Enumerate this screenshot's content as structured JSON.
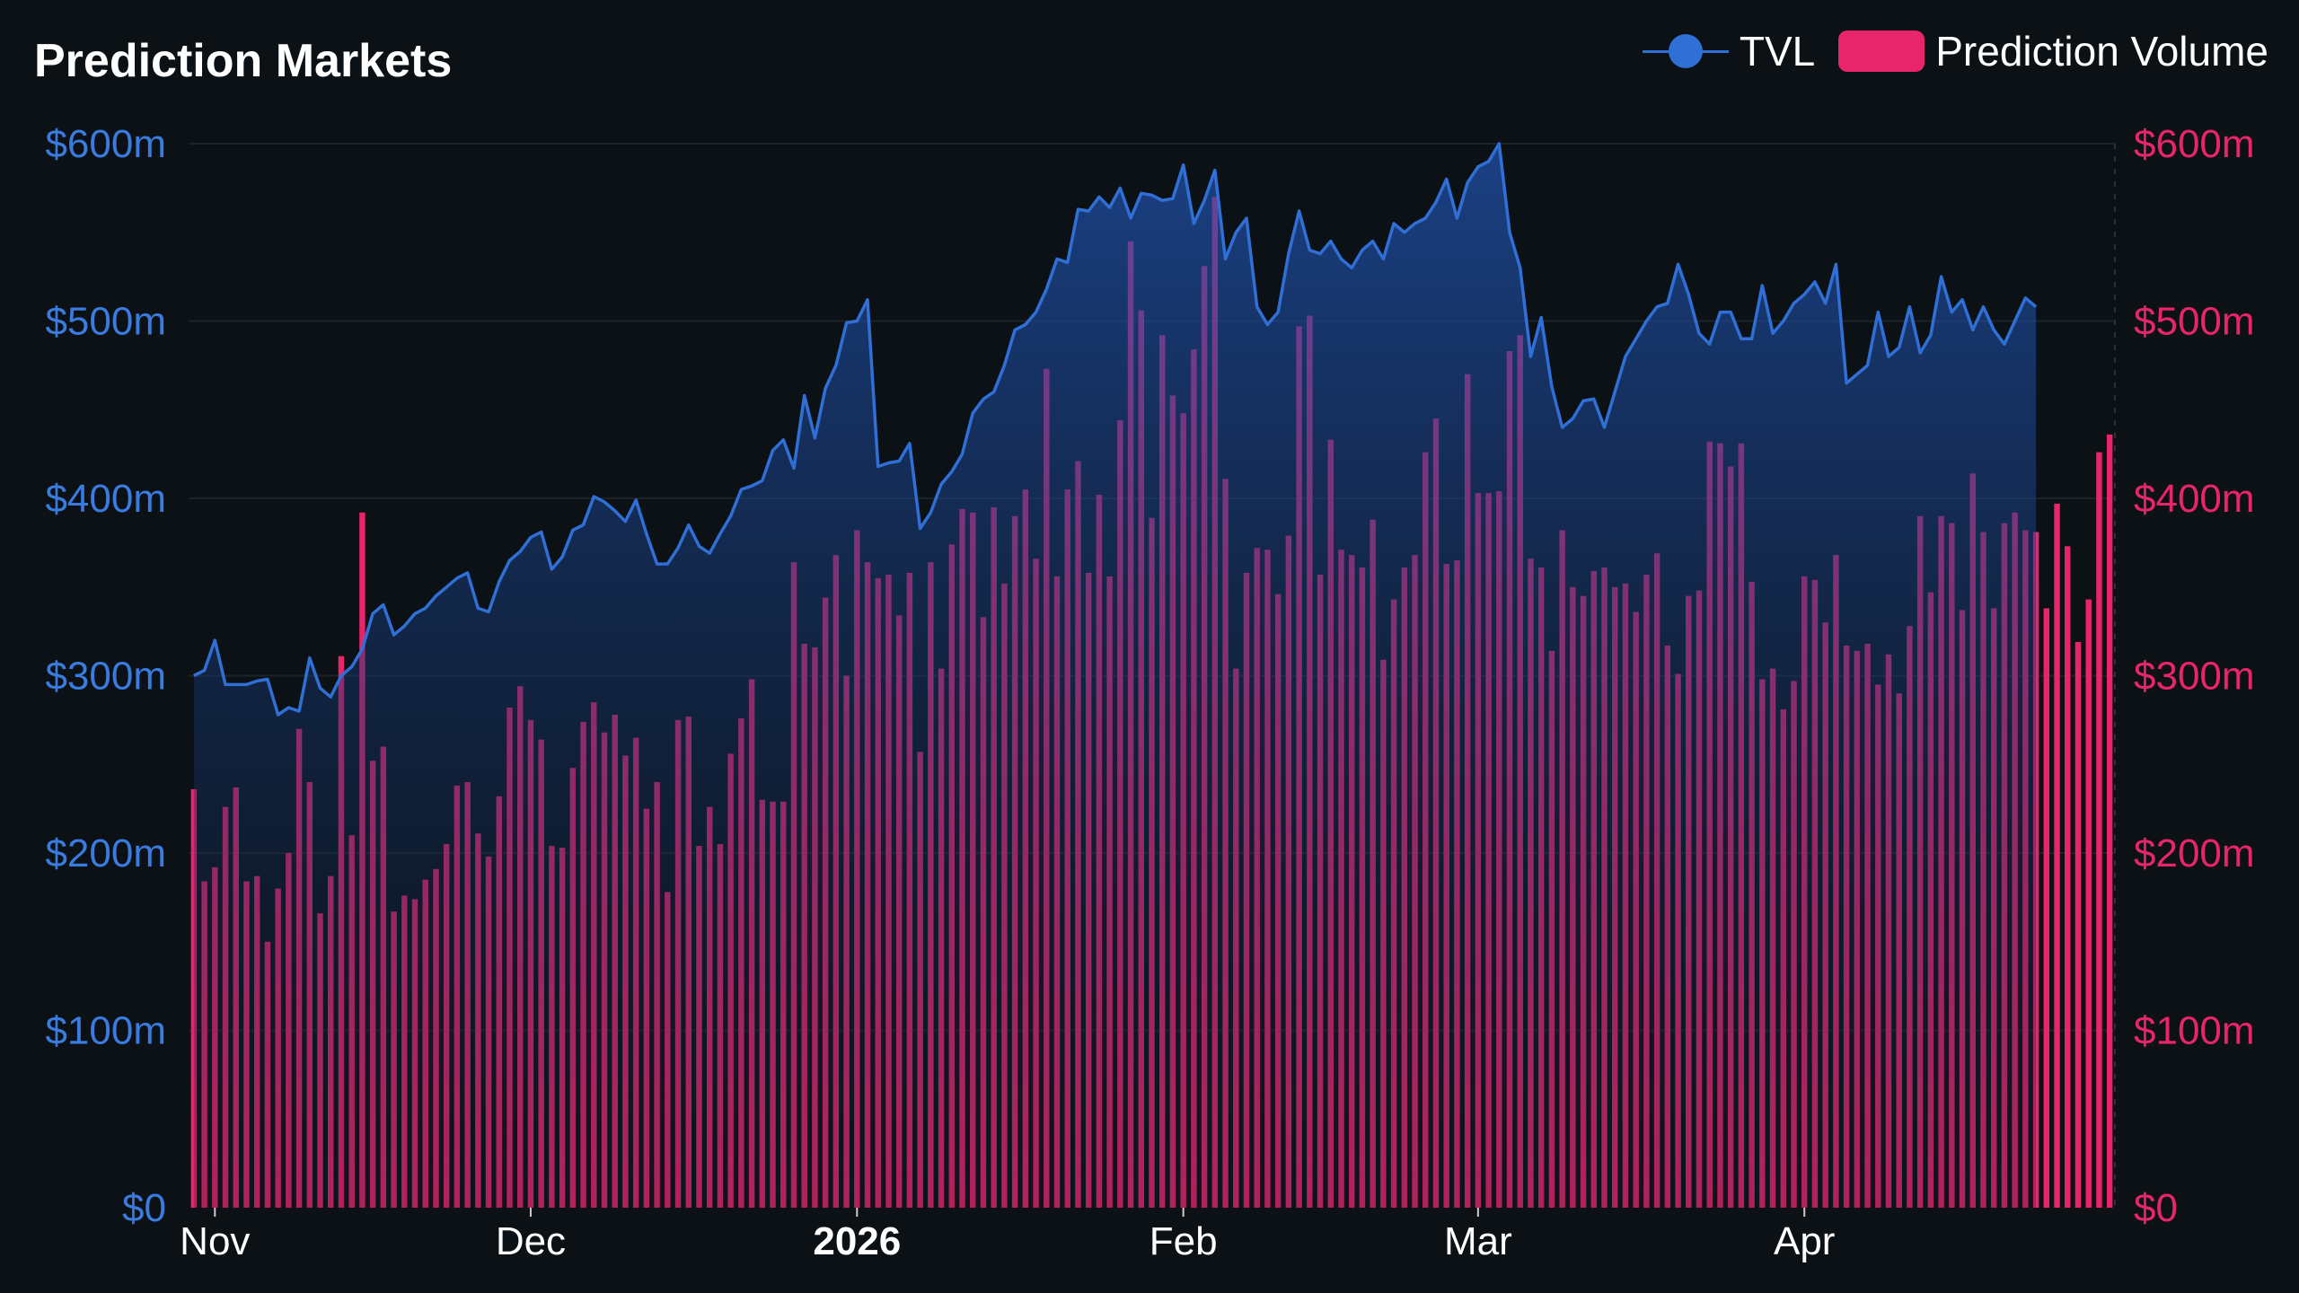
{
  "chart_data": {
    "type": "bar+line",
    "title": "Prediction Markets",
    "legend": {
      "position": "top-right"
    },
    "colors": {
      "tvl": "#2f6fd6",
      "volume": "#e8256a",
      "background": "#0b1114"
    },
    "x_ticks": [
      {
        "label": "Nov",
        "date": "2025-11-01",
        "bold": false
      },
      {
        "label": "Dec",
        "date": "2025-12-01",
        "bold": false
      },
      {
        "label": "2026",
        "date": "2026-01-01",
        "bold": true
      },
      {
        "label": "Feb",
        "date": "2026-02-01",
        "bold": false
      },
      {
        "label": "Mar",
        "date": "2026-03-01",
        "bold": false
      },
      {
        "label": "Apr",
        "date": "2026-04-01",
        "bold": false
      }
    ],
    "y_left": {
      "ticks": [
        "$0",
        "$100m",
        "$200m",
        "$300m",
        "$400m",
        "$500m",
        "$600m"
      ],
      "range": [
        0,
        600
      ]
    },
    "y_right": {
      "ticks": [
        "$0",
        "$100m",
        "$200m",
        "$300m",
        "$400m",
        "$500m",
        "$600m"
      ],
      "range": [
        0,
        600
      ]
    },
    "grid": true,
    "start_date": "2025-10-30",
    "series": [
      {
        "name": "TVL",
        "type": "area-line",
        "values": [
          300,
          303,
          320,
          295,
          295,
          295,
          297,
          298,
          278,
          282,
          280,
          310,
          293,
          288,
          300,
          305,
          315,
          335,
          340,
          323,
          328,
          335,
          338,
          345,
          350,
          355,
          358,
          338,
          336,
          353,
          365,
          370,
          378,
          381,
          360,
          367,
          382,
          385,
          401,
          398,
          393,
          387,
          399,
          380,
          363,
          363,
          372,
          385,
          373,
          369,
          380,
          390,
          405,
          407,
          410,
          427,
          433,
          417,
          458,
          434,
          462,
          475,
          499,
          500,
          512,
          418,
          420,
          421,
          431,
          383,
          392,
          408,
          415,
          425,
          448,
          456,
          460,
          475,
          495,
          498,
          505,
          518,
          535,
          533,
          563,
          562,
          570,
          564,
          575,
          558,
          572,
          571,
          568,
          569,
          588,
          555,
          568,
          585,
          535,
          550,
          558,
          508,
          498,
          505,
          538,
          562,
          540,
          538,
          545,
          535,
          530,
          540,
          545,
          535,
          555,
          550,
          555,
          558,
          567,
          580,
          558,
          578,
          587,
          590,
          600,
          550,
          530,
          480,
          502,
          463,
          440,
          445,
          455,
          456,
          440,
          460,
          480,
          490,
          500,
          508,
          510,
          532,
          515,
          493,
          487,
          505,
          505,
          490,
          490,
          520,
          493,
          500,
          510,
          515,
          522,
          510,
          532,
          465,
          470,
          475,
          505,
          480,
          485,
          508,
          482,
          492,
          525,
          505,
          512,
          495,
          508,
          495,
          487,
          500,
          513,
          508
        ]
      },
      {
        "name": "Prediction Volume",
        "type": "bar",
        "values": [
          236,
          184,
          192,
          226,
          237,
          184,
          187,
          150,
          180,
          200,
          270,
          240,
          166,
          187,
          311,
          210,
          392,
          252,
          260,
          167,
          176,
          174,
          185,
          191,
          205,
          238,
          240,
          211,
          198,
          232,
          282,
          294,
          275,
          264,
          204,
          203,
          248,
          274,
          285,
          268,
          278,
          255,
          265,
          225,
          240,
          178,
          275,
          277,
          204,
          226,
          205,
          256,
          276,
          298,
          230,
          229,
          229,
          364,
          318,
          316,
          344,
          368,
          300,
          382,
          364,
          355,
          357,
          334,
          358,
          257,
          364,
          304,
          374,
          394,
          392,
          333,
          395,
          352,
          390,
          405,
          366,
          473,
          356,
          405,
          421,
          358,
          402,
          356,
          444,
          545,
          506,
          389,
          492,
          458,
          448,
          484,
          531,
          570,
          411,
          304,
          358,
          372,
          371,
          346,
          379,
          497,
          503,
          357,
          433,
          371,
          368,
          361,
          388,
          309,
          343,
          361,
          368,
          426,
          445,
          363,
          365,
          470,
          403,
          403,
          404,
          483,
          492,
          366,
          361,
          314,
          382,
          350,
          345,
          359,
          361,
          350,
          352,
          336,
          357,
          369,
          317,
          301,
          345,
          348,
          432,
          431,
          418,
          431,
          353,
          298,
          304,
          281,
          297,
          356,
          354,
          330,
          368,
          317,
          314,
          318,
          295,
          312,
          290,
          328,
          390,
          347,
          390,
          386,
          337,
          414,
          381,
          338,
          386,
          392,
          382,
          381,
          338,
          397,
          373,
          319,
          343,
          426,
          436
        ]
      }
    ]
  }
}
